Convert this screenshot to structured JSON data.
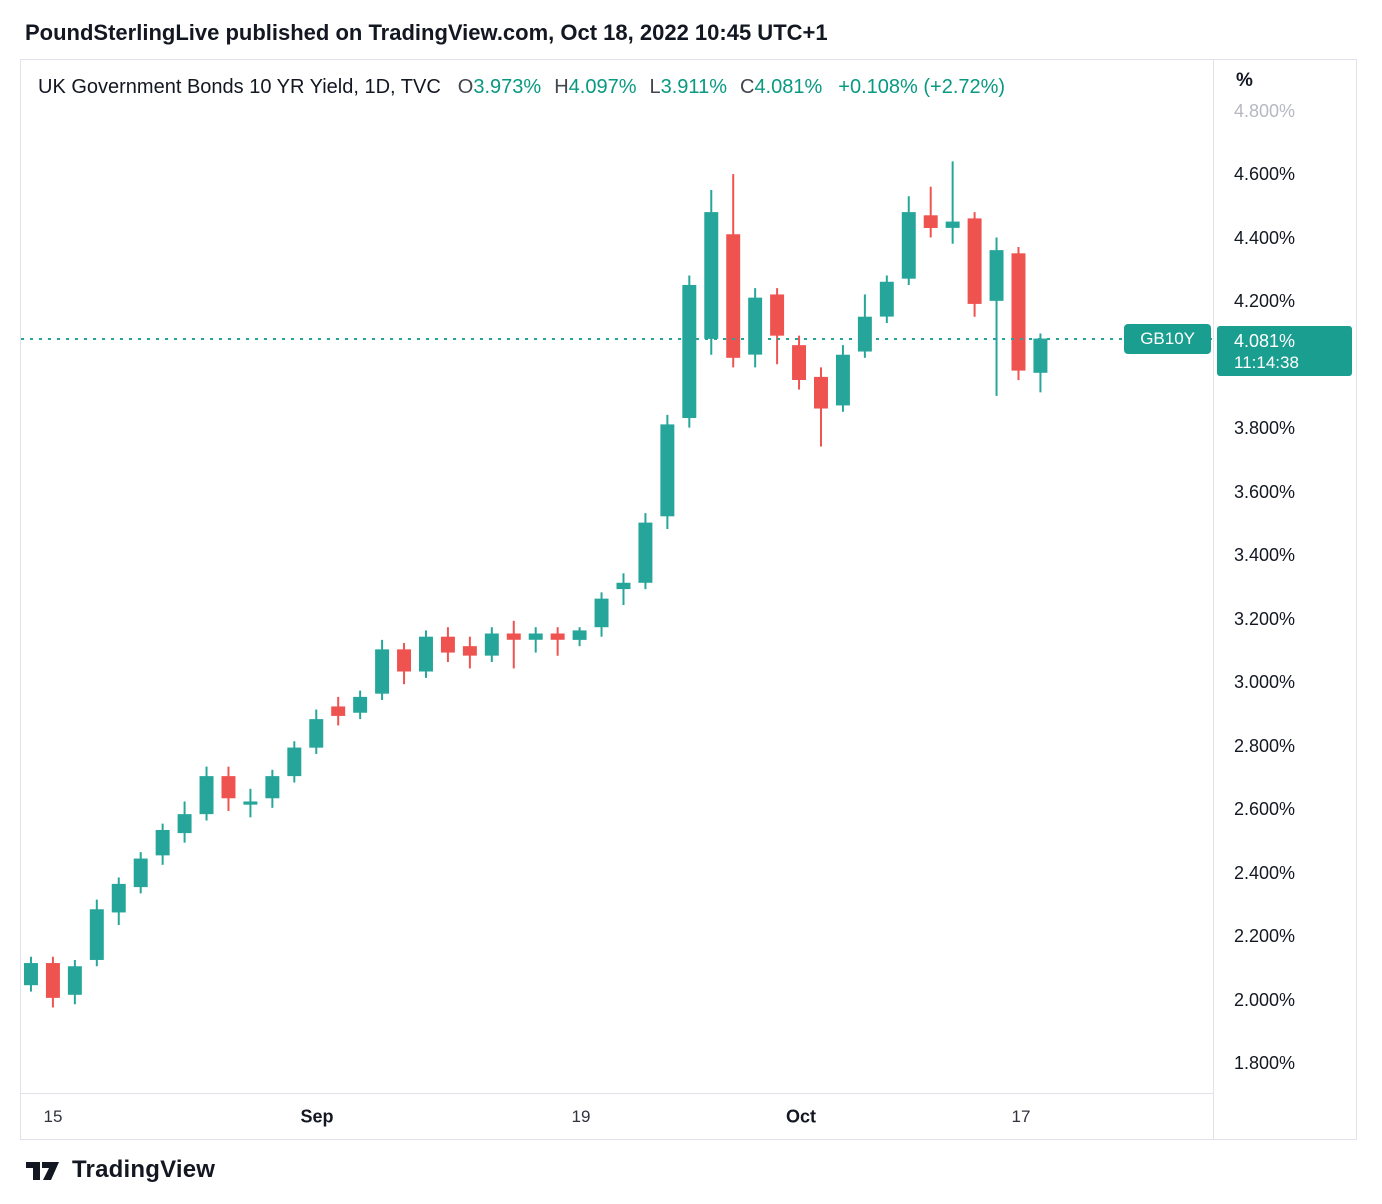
{
  "header": {
    "attribution": "PoundSterlingLive published on TradingView.com, Oct 18, 2022 10:45 UTC+1"
  },
  "legend": {
    "title": "UK Government Bonds 10 YR Yield, 1D, TVC",
    "ohlc": [
      {
        "label": "O",
        "value": "3.973%"
      },
      {
        "label": "H",
        "value": "4.097%"
      },
      {
        "label": "L",
        "value": "3.911%"
      },
      {
        "label": "C",
        "value": "4.081%"
      }
    ],
    "change": "+0.108% (+2.72%)"
  },
  "price_marker": {
    "symbol": "GB10Y",
    "price": "4.081%",
    "countdown": "11:14:38",
    "value": 4.081
  },
  "axes": {
    "unit": "%",
    "y_labels": [
      {
        "text": "4.800%",
        "value": 4.8,
        "faded": true
      },
      {
        "text": "4.600%",
        "value": 4.6
      },
      {
        "text": "4.400%",
        "value": 4.4
      },
      {
        "text": "4.200%",
        "value": 4.2
      },
      {
        "text": "4.000%",
        "value": 4.0
      },
      {
        "text": "3.800%",
        "value": 3.8
      },
      {
        "text": "3.600%",
        "value": 3.6
      },
      {
        "text": "3.400%",
        "value": 3.4
      },
      {
        "text": "3.200%",
        "value": 3.2
      },
      {
        "text": "3.000%",
        "value": 3.0
      },
      {
        "text": "2.800%",
        "value": 2.8
      },
      {
        "text": "2.600%",
        "value": 2.6
      },
      {
        "text": "2.400%",
        "value": 2.4
      },
      {
        "text": "2.200%",
        "value": 2.2
      },
      {
        "text": "2.000%",
        "value": 2.0
      },
      {
        "text": "1.800%",
        "value": 1.8
      }
    ],
    "x_labels": [
      {
        "text": "15",
        "index": 1,
        "bold": false
      },
      {
        "text": "Sep",
        "index": 13,
        "bold": true
      },
      {
        "text": "19",
        "index": 25,
        "bold": false
      },
      {
        "text": "Oct",
        "index": 35,
        "bold": true
      },
      {
        "text": "17",
        "index": 45,
        "bold": false
      }
    ]
  },
  "footer": {
    "brand": "TradingView"
  },
  "colors": {
    "up": "#26a69a",
    "down": "#ef5350",
    "label_bg": "#1a9e8f",
    "value_green": "#089981",
    "text_dark": "#131722",
    "border": "#e0e3eb",
    "faded_label": "#b6b8c1"
  },
  "chart_data": {
    "type": "candlestick",
    "title": "UK Government Bonds 10 YR Yield, 1D, TVC",
    "xlabel": "",
    "ylabel": "%",
    "ylim": [
      1.7,
      4.96
    ],
    "grid": false,
    "current_price": 4.081,
    "candles": [
      {
        "date": "Aug 12",
        "o": 2.04,
        "h": 2.13,
        "l": 2.02,
        "c": 2.11
      },
      {
        "date": "Aug 15",
        "o": 2.11,
        "h": 2.13,
        "l": 1.97,
        "c": 2.0
      },
      {
        "date": "Aug 16",
        "o": 2.01,
        "h": 2.12,
        "l": 1.98,
        "c": 2.1
      },
      {
        "date": "Aug 17",
        "o": 2.12,
        "h": 2.31,
        "l": 2.1,
        "c": 2.28
      },
      {
        "date": "Aug 18",
        "o": 2.27,
        "h": 2.38,
        "l": 2.23,
        "c": 2.36
      },
      {
        "date": "Aug 19",
        "o": 2.35,
        "h": 2.46,
        "l": 2.33,
        "c": 2.44
      },
      {
        "date": "Aug 22",
        "o": 2.45,
        "h": 2.55,
        "l": 2.42,
        "c": 2.53
      },
      {
        "date": "Aug 23",
        "o": 2.52,
        "h": 2.62,
        "l": 2.49,
        "c": 2.58
      },
      {
        "date": "Aug 24",
        "o": 2.58,
        "h": 2.73,
        "l": 2.56,
        "c": 2.7
      },
      {
        "date": "Aug 25",
        "o": 2.7,
        "h": 2.73,
        "l": 2.59,
        "c": 2.63
      },
      {
        "date": "Aug 26",
        "o": 2.61,
        "h": 2.66,
        "l": 2.57,
        "c": 2.62
      },
      {
        "date": "Aug 30",
        "o": 2.63,
        "h": 2.72,
        "l": 2.6,
        "c": 2.7
      },
      {
        "date": "Aug 31",
        "o": 2.7,
        "h": 2.81,
        "l": 2.68,
        "c": 2.79
      },
      {
        "date": "Sep 1",
        "o": 2.79,
        "h": 2.91,
        "l": 2.77,
        "c": 2.88
      },
      {
        "date": "Sep 2",
        "o": 2.92,
        "h": 2.95,
        "l": 2.86,
        "c": 2.89
      },
      {
        "date": "Sep 5",
        "o": 2.9,
        "h": 2.97,
        "l": 2.88,
        "c": 2.95
      },
      {
        "date": "Sep 6",
        "o": 2.96,
        "h": 3.13,
        "l": 2.94,
        "c": 3.1
      },
      {
        "date": "Sep 7",
        "o": 3.1,
        "h": 3.12,
        "l": 2.99,
        "c": 3.03
      },
      {
        "date": "Sep 8",
        "o": 3.03,
        "h": 3.16,
        "l": 3.01,
        "c": 3.14
      },
      {
        "date": "Sep 9",
        "o": 3.14,
        "h": 3.17,
        "l": 3.06,
        "c": 3.09
      },
      {
        "date": "Sep 12",
        "o": 3.11,
        "h": 3.14,
        "l": 3.04,
        "c": 3.08
      },
      {
        "date": "Sep 13",
        "o": 3.08,
        "h": 3.17,
        "l": 3.06,
        "c": 3.15
      },
      {
        "date": "Sep 14",
        "o": 3.15,
        "h": 3.19,
        "l": 3.04,
        "c": 3.13
      },
      {
        "date": "Sep 15",
        "o": 3.13,
        "h": 3.17,
        "l": 3.09,
        "c": 3.15
      },
      {
        "date": "Sep 16",
        "o": 3.15,
        "h": 3.17,
        "l": 3.08,
        "c": 3.13
      },
      {
        "date": "Sep 19",
        "o": 3.13,
        "h": 3.17,
        "l": 3.11,
        "c": 3.16
      },
      {
        "date": "Sep 20",
        "o": 3.17,
        "h": 3.28,
        "l": 3.14,
        "c": 3.26
      },
      {
        "date": "Sep 21",
        "o": 3.29,
        "h": 3.34,
        "l": 3.24,
        "c": 3.31
      },
      {
        "date": "Sep 22",
        "o": 3.31,
        "h": 3.53,
        "l": 3.29,
        "c": 3.5
      },
      {
        "date": "Sep 23",
        "o": 3.52,
        "h": 3.84,
        "l": 3.48,
        "c": 3.81
      },
      {
        "date": "Sep 26",
        "o": 3.83,
        "h": 4.28,
        "l": 3.8,
        "c": 4.25
      },
      {
        "date": "Sep 27",
        "o": 4.08,
        "h": 4.55,
        "l": 4.03,
        "c": 4.48
      },
      {
        "date": "Sep 28",
        "o": 4.41,
        "h": 4.6,
        "l": 3.99,
        "c": 4.02
      },
      {
        "date": "Sep 29",
        "o": 4.03,
        "h": 4.24,
        "l": 3.99,
        "c": 4.21
      },
      {
        "date": "Sep 30",
        "o": 4.22,
        "h": 4.24,
        "l": 4.0,
        "c": 4.09
      },
      {
        "date": "Oct 3",
        "o": 4.06,
        "h": 4.09,
        "l": 3.92,
        "c": 3.95
      },
      {
        "date": "Oct 4",
        "o": 3.96,
        "h": 3.99,
        "l": 3.74,
        "c": 3.86
      },
      {
        "date": "Oct 5",
        "o": 3.87,
        "h": 4.06,
        "l": 3.85,
        "c": 4.03
      },
      {
        "date": "Oct 6",
        "o": 4.04,
        "h": 4.22,
        "l": 4.02,
        "c": 4.15
      },
      {
        "date": "Oct 7",
        "o": 4.15,
        "h": 4.28,
        "l": 4.13,
        "c": 4.26
      },
      {
        "date": "Oct 10",
        "o": 4.27,
        "h": 4.53,
        "l": 4.25,
        "c": 4.48
      },
      {
        "date": "Oct 11",
        "o": 4.47,
        "h": 4.56,
        "l": 4.4,
        "c": 4.43
      },
      {
        "date": "Oct 12",
        "o": 4.43,
        "h": 4.64,
        "l": 4.38,
        "c": 4.45
      },
      {
        "date": "Oct 13",
        "o": 4.46,
        "h": 4.48,
        "l": 4.15,
        "c": 4.19
      },
      {
        "date": "Oct 14",
        "o": 4.2,
        "h": 4.4,
        "l": 3.9,
        "c": 4.36
      },
      {
        "date": "Oct 17",
        "o": 4.35,
        "h": 4.37,
        "l": 3.95,
        "c": 3.98
      },
      {
        "date": "Oct 18",
        "o": 3.973,
        "h": 4.097,
        "l": 3.911,
        "c": 4.081
      }
    ]
  }
}
